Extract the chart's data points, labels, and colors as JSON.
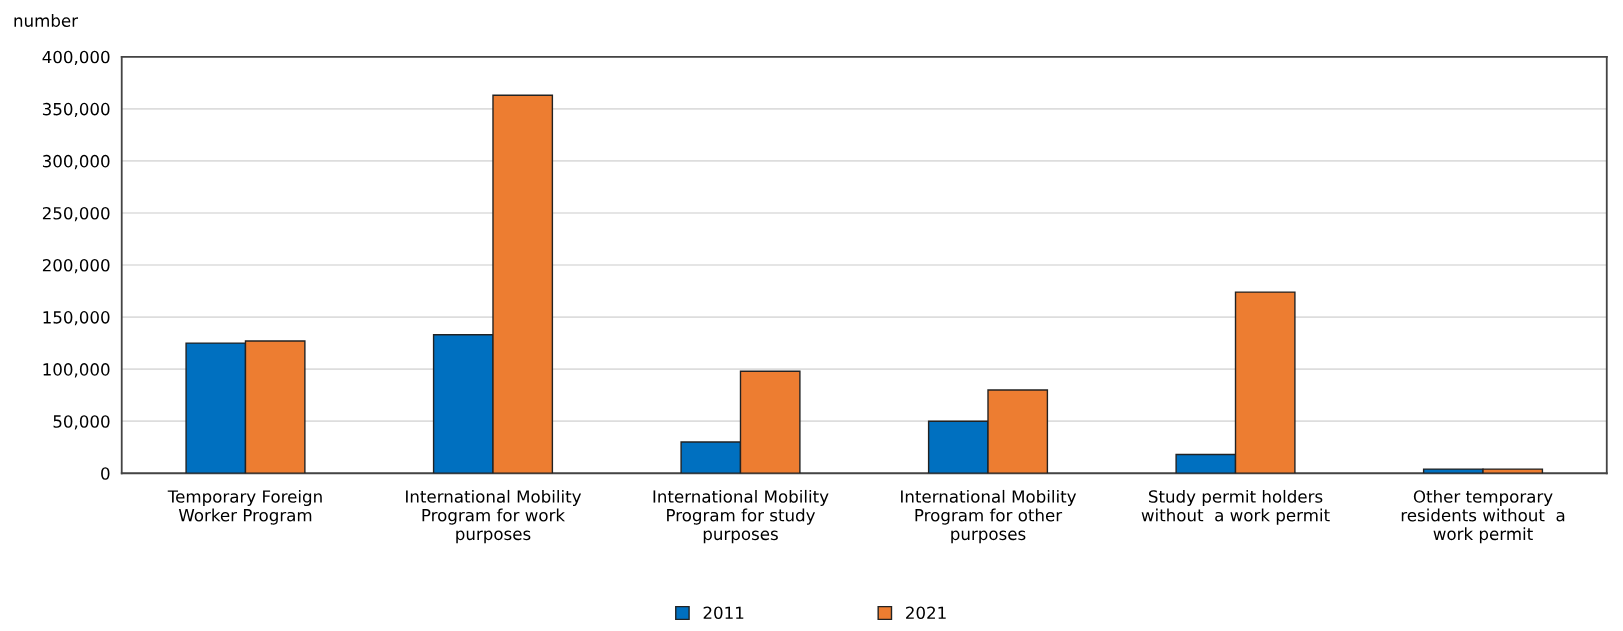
{
  "chart_data": {
    "type": "bar",
    "ylabel": "number",
    "categories": [
      "Temporary Foreign\nWorker Program",
      "International Mobility\nProgram for work\npurposes",
      "International Mobility\nProgram for study\npurposes",
      "International Mobility\nProgram for other\npurposes",
      "Study permit holders\nwithout  a work permit",
      "Other temporary\nresidents without  a\nwork permit"
    ],
    "series": [
      {
        "name": "2011",
        "color": "#0070c0",
        "values": [
          125000,
          133000,
          30000,
          50000,
          18000,
          4000
        ]
      },
      {
        "name": "2021",
        "color": "#ed7d31",
        "values": [
          127000,
          363000,
          98000,
          80000,
          174000,
          4000
        ]
      }
    ],
    "ylim": [
      0,
      400000
    ],
    "yticks": [
      {
        "value": 0,
        "label": "0"
      },
      {
        "value": 50000,
        "label": "50,000"
      },
      {
        "value": 100000,
        "label": "100,000"
      },
      {
        "value": 150000,
        "label": "150,000"
      },
      {
        "value": 200000,
        "label": "200,000"
      },
      {
        "value": 250000,
        "label": "250,000"
      },
      {
        "value": 300000,
        "label": "300,000"
      },
      {
        "value": 350000,
        "label": "350,000"
      },
      {
        "value": 400000,
        "label": "400,000"
      }
    ],
    "grid": "y",
    "legend": "bottom"
  }
}
